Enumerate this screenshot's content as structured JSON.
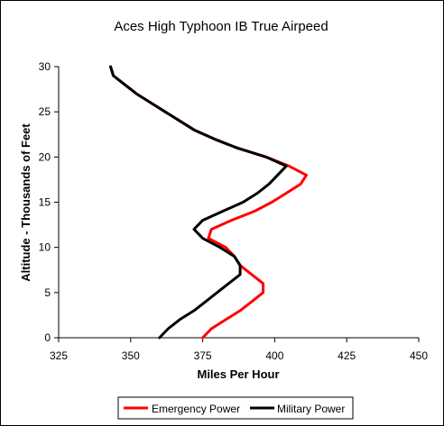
{
  "chart_data": {
    "type": "line",
    "title": "Aces High Typhoon IB True Airpeed",
    "xlabel": "Miles Per Hour",
    "ylabel": "Altitude - Thousands of Feet",
    "xlim": [
      325,
      450
    ],
    "ylim": [
      0,
      30
    ],
    "x_ticks": [
      325,
      350,
      375,
      400,
      425,
      450
    ],
    "y_ticks": [
      0,
      5,
      10,
      15,
      20,
      25,
      30
    ],
    "grid": false,
    "legend_position": "bottom",
    "orientation": "x is speed, y is altitude",
    "series": [
      {
        "name": "Emergency Power",
        "color": "#ff0000",
        "points": [
          [
            375,
            0
          ],
          [
            378,
            1
          ],
          [
            383,
            2
          ],
          [
            388,
            3
          ],
          [
            392,
            4
          ],
          [
            396,
            5
          ],
          [
            396,
            6
          ],
          [
            392,
            7
          ],
          [
            388,
            8
          ],
          [
            386,
            9
          ],
          [
            383,
            10
          ],
          [
            377,
            11
          ],
          [
            378,
            12
          ],
          [
            385,
            13
          ],
          [
            393,
            14
          ],
          [
            399,
            15
          ],
          [
            404,
            16
          ],
          [
            409,
            17
          ],
          [
            411,
            18
          ],
          [
            405,
            19
          ],
          [
            397,
            20
          ],
          [
            387,
            21
          ],
          [
            379,
            22
          ],
          [
            372,
            23
          ],
          [
            367,
            24
          ],
          [
            362,
            25
          ],
          [
            357,
            26
          ],
          [
            352,
            27
          ],
          [
            348,
            28
          ],
          [
            344,
            29
          ],
          [
            343,
            30
          ]
        ]
      },
      {
        "name": "Military Power",
        "color": "#000000",
        "points": [
          [
            360,
            0
          ],
          [
            363,
            1
          ],
          [
            367,
            2
          ],
          [
            372,
            3
          ],
          [
            376,
            4
          ],
          [
            380,
            5
          ],
          [
            384,
            6
          ],
          [
            388,
            7
          ],
          [
            388,
            8
          ],
          [
            386,
            9
          ],
          [
            381,
            10
          ],
          [
            375,
            11
          ],
          [
            372,
            12
          ],
          [
            375,
            13
          ],
          [
            382,
            14
          ],
          [
            389,
            15
          ],
          [
            394,
            16
          ],
          [
            398,
            17
          ],
          [
            401,
            18
          ],
          [
            404,
            19
          ],
          [
            397,
            20
          ],
          [
            387,
            21
          ],
          [
            379,
            22
          ],
          [
            372,
            23
          ],
          [
            367,
            24
          ],
          [
            362,
            25
          ],
          [
            357,
            26
          ],
          [
            352,
            27
          ],
          [
            348,
            28
          ],
          [
            344,
            29
          ],
          [
            343,
            30
          ]
        ]
      }
    ]
  }
}
